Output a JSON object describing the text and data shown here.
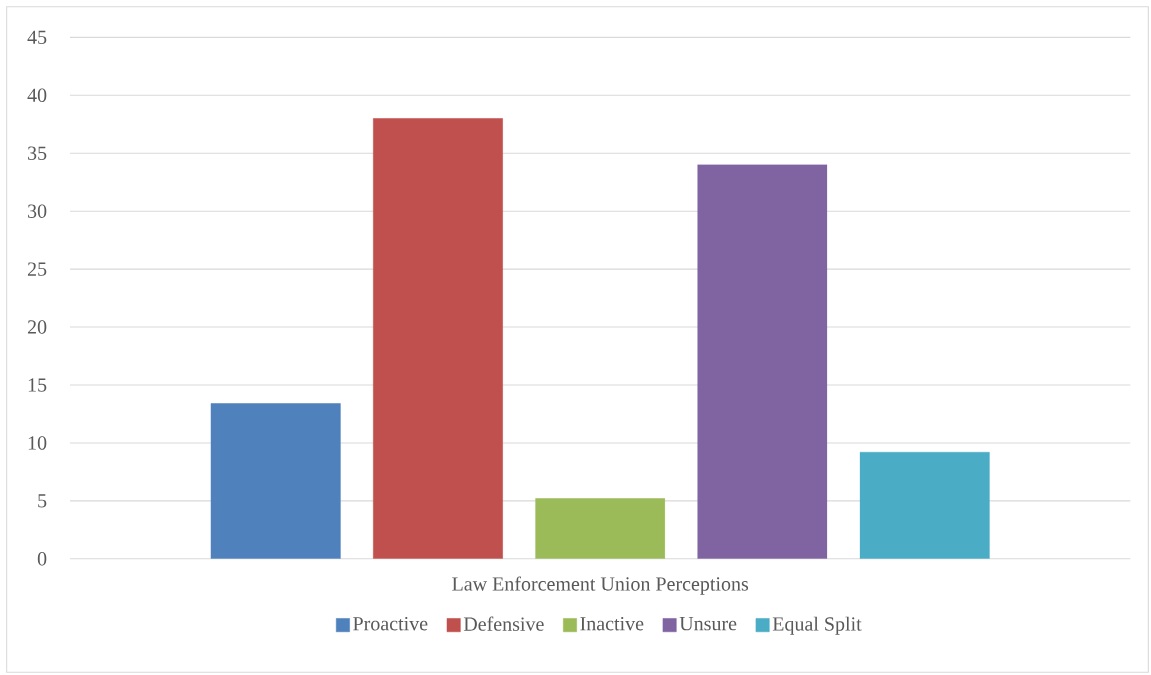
{
  "chart_data": {
    "type": "bar",
    "categories": [
      "Law Enforcement Union Perceptions"
    ],
    "series": [
      {
        "name": "Proactive",
        "color": "#4f81bd",
        "values": [
          13.4
        ]
      },
      {
        "name": "Defensive",
        "color": "#c0504d",
        "values": [
          38
        ]
      },
      {
        "name": "Inactive",
        "color": "#9bbb59",
        "values": [
          5.2
        ]
      },
      {
        "name": "Unsure",
        "color": "#8064a2",
        "values": [
          34
        ]
      },
      {
        "name": "Equal Split",
        "color": "#4bacc6",
        "values": [
          9.2
        ]
      }
    ],
    "ylim": [
      0,
      45
    ],
    "yticks": [
      0,
      5,
      10,
      15,
      20,
      25,
      30,
      35,
      40,
      45
    ],
    "grid": "y",
    "legend": "bottom"
  }
}
